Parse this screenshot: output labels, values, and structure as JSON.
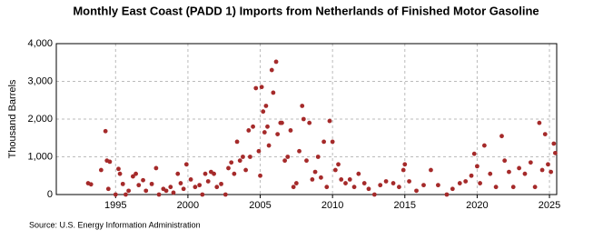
{
  "chart_data": {
    "type": "scatter",
    "title": "Monthly East Coast (PADD 1) Imports from Netherlands of Finished Motor Gasoline",
    "y_label": "Thousand Barrels",
    "source": "Source: U.S. Energy Information Administration",
    "color": "#a52a2a",
    "grid": true,
    "xlim": [
      1990.9,
      2025.5
    ],
    "ylim": [
      0,
      4000
    ],
    "xticks": [
      1995,
      2000,
      2005,
      2010,
      2015,
      2020,
      2025
    ],
    "yticks": [
      0,
      {
        "value": 1000,
        "label": "1,000"
      },
      {
        "value": 2000,
        "label": "2,000"
      },
      {
        "value": 3000,
        "label": "3,000"
      },
      {
        "value": 4000,
        "label": "4,000"
      }
    ],
    "x": [
      1993.1,
      1993.3,
      1994.0,
      1994.3,
      1994.4,
      1994.6,
      1994.5,
      1995.0,
      1995.2,
      1995.3,
      1995.5,
      1995.7,
      1995.9,
      1996.2,
      1996.4,
      1996.6,
      1996.9,
      1997.1,
      1997.5,
      1997.8,
      1998.0,
      1998.3,
      1998.5,
      1998.8,
      1999.0,
      1999.3,
      1999.5,
      1999.7,
      1999.9,
      2000.2,
      2000.5,
      2000.8,
      2001.0,
      2001.2,
      2001.4,
      2001.6,
      2001.8,
      2002.0,
      2002.3,
      2002.6,
      2002.8,
      2003.0,
      2003.2,
      2003.4,
      2003.6,
      2003.8,
      2004.0,
      2004.2,
      2004.3,
      2004.5,
      2004.7,
      2004.9,
      2005.0,
      2005.1,
      2005.2,
      2005.3,
      2005.4,
      2005.5,
      2005.6,
      2005.8,
      2005.9,
      2006.1,
      2006.2,
      2006.4,
      2006.5,
      2006.7,
      2006.9,
      2007.1,
      2007.3,
      2007.5,
      2007.7,
      2007.9,
      2008.0,
      2008.2,
      2008.4,
      2008.6,
      2008.8,
      2009.0,
      2009.2,
      2009.4,
      2009.6,
      2009.8,
      2010.0,
      2010.2,
      2010.4,
      2010.6,
      2010.9,
      2011.2,
      2011.5,
      2011.8,
      2012.2,
      2012.5,
      2012.9,
      2013.3,
      2013.7,
      2014.2,
      2014.6,
      2014.9,
      2015.0,
      2015.3,
      2015.8,
      2016.3,
      2016.8,
      2017.3,
      2017.9,
      2018.3,
      2018.8,
      2019.2,
      2019.6,
      2019.8,
      2020.0,
      2020.2,
      2020.5,
      2020.9,
      2021.3,
      2021.7,
      2021.9,
      2022.2,
      2022.5,
      2022.9,
      2023.3,
      2023.7,
      2024.0,
      2024.3,
      2024.5,
      2024.7,
      2024.9,
      2025.1,
      2025.3,
      2025.4
    ],
    "values": [
      300,
      270,
      650,
      1680,
      900,
      870,
      150,
      0,
      680,
      550,
      280,
      0,
      100,
      480,
      550,
      250,
      380,
      100,
      280,
      700,
      0,
      150,
      100,
      200,
      50,
      550,
      300,
      150,
      800,
      400,
      200,
      250,
      0,
      550,
      350,
      600,
      550,
      200,
      280,
      0,
      700,
      850,
      550,
      1400,
      900,
      1000,
      650,
      1700,
      1000,
      1800,
      2820,
      1150,
      500,
      2850,
      2200,
      1650,
      2350,
      1800,
      1300,
      3300,
      2700,
      3520,
      1600,
      1900,
      1900,
      900,
      1000,
      1700,
      200,
      300,
      1150,
      2350,
      2000,
      900,
      1900,
      400,
      600,
      1000,
      450,
      1400,
      200,
      1950,
      1400,
      650,
      800,
      400,
      300,
      400,
      200,
      550,
      300,
      150,
      0,
      250,
      350,
      300,
      200,
      650,
      800,
      350,
      100,
      250,
      650,
      250,
      0,
      150,
      300,
      350,
      500,
      1080,
      750,
      300,
      1300,
      550,
      200,
      1550,
      900,
      600,
      200,
      700,
      550,
      850,
      200,
      1900,
      650,
      1600,
      800,
      600,
      1350,
      1100
    ]
  }
}
